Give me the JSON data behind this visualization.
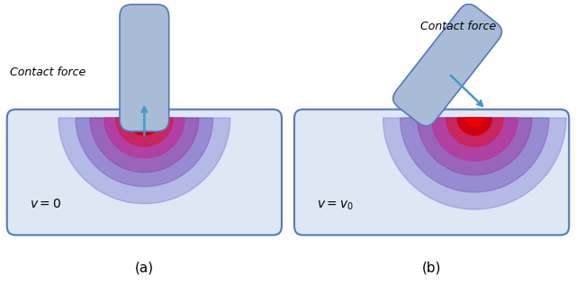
{
  "fig_width": 6.4,
  "fig_height": 3.26,
  "bg_color": "#ffffff",
  "panel_bg": "#dde8f5",
  "panel_border": "#5577bb",
  "finger_color": "#a8bcd8",
  "finger_edge": "#5577bb",
  "arrow_color": "#4499cc",
  "label_a": "(a)",
  "label_b": "(b)",
  "text_v0_left": "v = 0",
  "text_v0_right": "v = v_0",
  "contact_force": "Contact force",
  "radii_a": [
    3.0,
    2.4,
    1.9,
    1.4,
    1.0,
    0.6,
    0.3
  ],
  "radii_b": [
    3.2,
    2.6,
    2.0,
    1.5,
    1.0,
    0.6,
    0.3
  ],
  "ring_colors": [
    "#6666cc",
    "#7755bb",
    "#9944aa",
    "#bb3399",
    "#cc2255",
    "#cc0011",
    "#ee0000"
  ],
  "ring_alphas": [
    0.35,
    0.45,
    0.55,
    0.7,
    0.85,
    1.0,
    1.0
  ]
}
